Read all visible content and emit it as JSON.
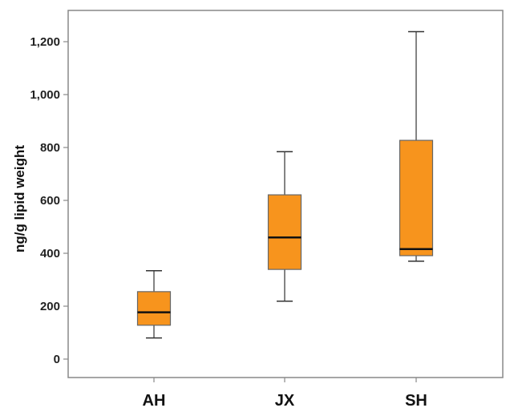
{
  "chart_data": {
    "type": "box",
    "title": "",
    "xlabel": "",
    "ylabel": "ng/g lipid weight",
    "ylim": [
      -70,
      1320
    ],
    "yticks": [
      0,
      200,
      400,
      600,
      800,
      1000,
      1200
    ],
    "ytick_labels": [
      "0",
      "200",
      "400",
      "600",
      "800",
      "1,000",
      "1,200"
    ],
    "categories": [
      "AH",
      "JX",
      "SH"
    ],
    "boxes": [
      {
        "name": "AH",
        "min": 80,
        "q1": 128,
        "median": 177,
        "q3": 255,
        "max": 334
      },
      {
        "name": "JX",
        "min": 219,
        "q1": 339,
        "median": 460,
        "q3": 621,
        "max": 784
      },
      {
        "name": "SH",
        "min": 370,
        "q1": 391,
        "median": 416,
        "q3": 827,
        "max": 1238
      }
    ],
    "grid": false,
    "colors": {
      "box_fill": "#F7941D",
      "box_edge": "#666666",
      "median": "#111111",
      "frame": "#888888"
    }
  }
}
